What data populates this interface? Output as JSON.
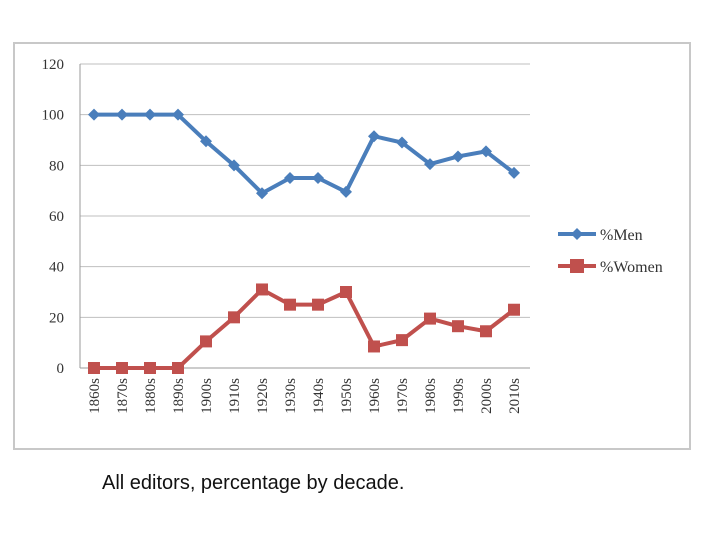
{
  "caption": "All editors, percentage by decade.",
  "chart_data": {
    "type": "line",
    "title": "",
    "xlabel": "",
    "ylabel": "",
    "categories": [
      "1860s",
      "1870s",
      "1880s",
      "1890s",
      "1900s",
      "1910s",
      "1920s",
      "1930s",
      "1940s",
      "1950s",
      "1960s",
      "1970s",
      "1980s",
      "1990s",
      "2000s",
      "2010s"
    ],
    "ylim": [
      0,
      120
    ],
    "yticks": [
      "0",
      "20",
      "40",
      "60",
      "80",
      "100",
      "120"
    ],
    "grid": true,
    "legend_position": "right",
    "series": [
      {
        "name": "%Men",
        "color": "#4a7ebb",
        "marker": "diamond",
        "values": [
          100,
          100,
          100,
          100,
          89.5,
          80,
          69,
          75,
          75,
          69.5,
          91.5,
          89,
          80.5,
          83.5,
          85.5,
          77
        ]
      },
      {
        "name": "%Women",
        "color": "#c0504d",
        "marker": "square",
        "values": [
          0,
          0,
          0,
          0,
          10.5,
          20,
          31,
          25,
          25,
          30,
          8.5,
          11,
          19.5,
          16.5,
          14.5,
          23
        ]
      }
    ]
  }
}
